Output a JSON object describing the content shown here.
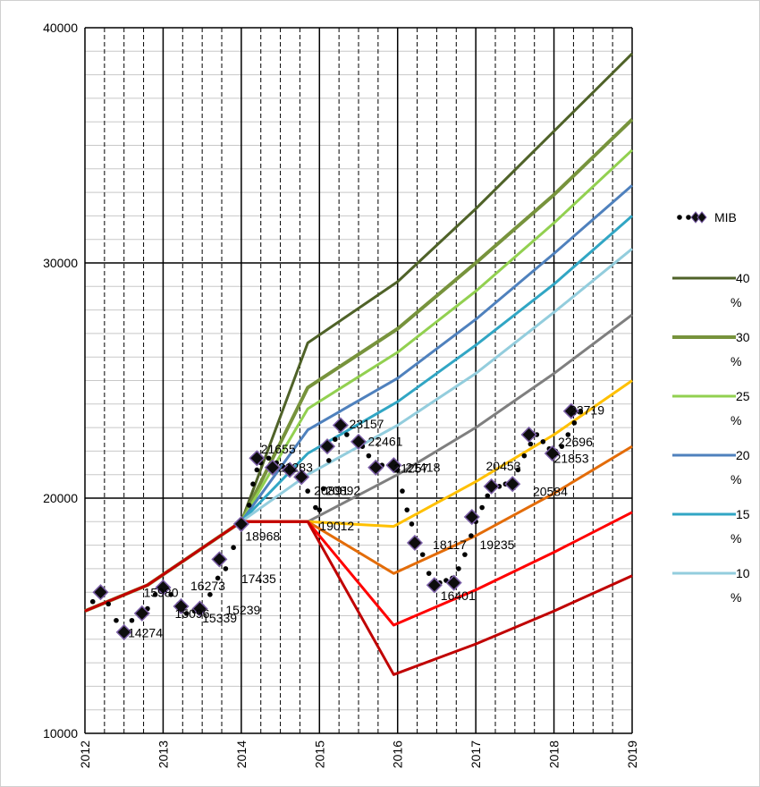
{
  "chart_data": {
    "type": "line",
    "xlim": [
      2012,
      2019
    ],
    "ylim": [
      10000,
      40000
    ],
    "y_ticks": [
      10000,
      20000,
      30000,
      40000
    ],
    "y_tick_labels": [
      "10000",
      "20000",
      "30000",
      "40000"
    ],
    "x_ticks": [
      2012,
      2013,
      2014,
      2015,
      2016,
      2017,
      2018,
      2019
    ],
    "x_tick_labels": [
      "2012",
      "2013",
      "2014",
      "2015",
      "2016",
      "2017",
      "2018",
      "2019"
    ],
    "grid": true,
    "legend_position": "right",
    "mib": {
      "name": "MIB",
      "color": "#000000",
      "marker_fill": "#0d0d0d",
      "marker_edge": "#7b5ea7",
      "dots": [
        [
          2012.1,
          15600
        ],
        [
          2012.2,
          16000
        ],
        [
          2012.3,
          15500
        ],
        [
          2012.4,
          14800
        ],
        [
          2012.5,
          14300
        ],
        [
          2012.6,
          14800
        ],
        [
          2012.7,
          15000
        ],
        [
          2012.8,
          15300
        ],
        [
          2012.9,
          15900
        ],
        [
          2013.0,
          16200
        ],
        [
          2013.1,
          15900
        ],
        [
          2013.2,
          15500
        ],
        [
          2013.3,
          15100
        ],
        [
          2013.4,
          15200
        ],
        [
          2013.5,
          15400
        ],
        [
          2013.6,
          15900
        ],
        [
          2013.7,
          16600
        ],
        [
          2013.8,
          17000
        ],
        [
          2013.9,
          17900
        ],
        [
          2014.0,
          18700
        ],
        [
          2014.1,
          19700
        ],
        [
          2014.15,
          20600
        ],
        [
          2014.2,
          21200
        ],
        [
          2014.25,
          21500
        ],
        [
          2014.35,
          21700
        ],
        [
          2014.45,
          21500
        ],
        [
          2014.55,
          21300
        ],
        [
          2014.65,
          21200
        ],
        [
          2014.75,
          20800
        ],
        [
          2014.85,
          20300
        ],
        [
          2014.95,
          19600
        ],
        [
          2015.0,
          19500
        ],
        [
          2015.05,
          20400
        ],
        [
          2015.12,
          21600
        ],
        [
          2015.2,
          22500
        ],
        [
          2015.28,
          23000
        ],
        [
          2015.35,
          22700
        ],
        [
          2015.45,
          22400
        ],
        [
          2015.55,
          22200
        ],
        [
          2015.63,
          21800
        ],
        [
          2015.72,
          21400
        ],
        [
          2015.8,
          21400
        ],
        [
          2015.9,
          21400
        ],
        [
          2016.0,
          21200
        ],
        [
          2016.06,
          20300
        ],
        [
          2016.12,
          19500
        ],
        [
          2016.18,
          18900
        ],
        [
          2016.25,
          18200
        ],
        [
          2016.32,
          17600
        ],
        [
          2016.4,
          16800
        ],
        [
          2016.47,
          16300
        ],
        [
          2016.54,
          16400
        ],
        [
          2016.62,
          16500
        ],
        [
          2016.7,
          16600
        ],
        [
          2016.78,
          17000
        ],
        [
          2016.86,
          17600
        ],
        [
          2016.94,
          18400
        ],
        [
          2017.0,
          19000
        ],
        [
          2017.08,
          19600
        ],
        [
          2017.15,
          20100
        ],
        [
          2017.22,
          20500
        ],
        [
          2017.3,
          20500
        ],
        [
          2017.38,
          20600
        ],
        [
          2017.46,
          20700
        ],
        [
          2017.54,
          21200
        ],
        [
          2017.62,
          21800
        ],
        [
          2017.7,
          22300
        ],
        [
          2017.78,
          22700
        ],
        [
          2017.86,
          22400
        ],
        [
          2017.94,
          22100
        ],
        [
          2018.02,
          22000
        ],
        [
          2018.1,
          22200
        ],
        [
          2018.18,
          22700
        ],
        [
          2018.26,
          23200
        ],
        [
          2018.34,
          23700
        ]
      ],
      "diamonds": [
        [
          2012.2,
          16000
        ],
        [
          2012.5,
          14300
        ],
        [
          2012.73,
          15100
        ],
        [
          2013.0,
          16200
        ],
        [
          2013.23,
          15400
        ],
        [
          2013.47,
          15300
        ],
        [
          2013.72,
          17400
        ],
        [
          2014.0,
          18900
        ],
        [
          2014.2,
          21700
        ],
        [
          2014.4,
          21300
        ],
        [
          2014.62,
          21200
        ],
        [
          2014.77,
          20900
        ],
        [
          2015.1,
          22200
        ],
        [
          2015.27,
          23100
        ],
        [
          2015.5,
          22400
        ],
        [
          2015.72,
          21300
        ],
        [
          2015.95,
          21400
        ],
        [
          2016.22,
          18100
        ],
        [
          2016.47,
          16300
        ],
        [
          2016.72,
          16400
        ],
        [
          2016.95,
          19200
        ],
        [
          2017.2,
          20500
        ],
        [
          2017.47,
          20600
        ],
        [
          2017.68,
          22700
        ],
        [
          2017.98,
          21900
        ],
        [
          2018.22,
          23700
        ]
      ]
    },
    "data_labels": [
      {
        "x": 2012.75,
        "y": 15980,
        "text": "15980"
      },
      {
        "x": 2012.55,
        "y": 14274,
        "text": "14274"
      },
      {
        "x": 2013.15,
        "y": 15096,
        "text": "15096"
      },
      {
        "x": 2013.35,
        "y": 16273,
        "text": "16273"
      },
      {
        "x": 2013.5,
        "y": 14900,
        "text": "15339"
      },
      {
        "x": 2013.8,
        "y": 15239,
        "text": "15239"
      },
      {
        "x": 2014.0,
        "y": 16580,
        "text": "17435"
      },
      {
        "x": 2014.05,
        "y": 18380,
        "text": "18968"
      },
      {
        "x": 2014.25,
        "y": 22100,
        "text": "21655"
      },
      {
        "x": 2014.47,
        "y": 21320,
        "text": "21283"
      },
      {
        "x": 2014.93,
        "y": 20320,
        "text": "20891"
      },
      {
        "x": 2015.08,
        "y": 20320,
        "text": "20892"
      },
      {
        "x": 2015.38,
        "y": 23150,
        "text": "23157"
      },
      {
        "x": 2015.62,
        "y": 22420,
        "text": "22461"
      },
      {
        "x": 2015.95,
        "y": 21280,
        "text": "21257"
      },
      {
        "x": 2016.1,
        "y": 21320,
        "text": "21418"
      },
      {
        "x": 2015.0,
        "y": 18820,
        "text": "19012"
      },
      {
        "x": 2016.45,
        "y": 18020,
        "text": "18117"
      },
      {
        "x": 2017.05,
        "y": 18020,
        "text": "19235"
      },
      {
        "x": 2016.55,
        "y": 15860,
        "text": "16401"
      },
      {
        "x": 2017.13,
        "y": 21360,
        "text": "20453"
      },
      {
        "x": 2017.73,
        "y": 20280,
        "text": "20584"
      },
      {
        "x": 2018.05,
        "y": 22400,
        "text": "22696"
      },
      {
        "x": 2018.0,
        "y": 21700,
        "text": "21853"
      },
      {
        "x": 2018.2,
        "y": 23740,
        "text": "23719"
      }
    ],
    "series": [
      {
        "name": "40 %",
        "color": "#4f6228",
        "width": 3,
        "x": [
          2012,
          2012.8,
          2014,
          2014.85,
          2016,
          2017,
          2018,
          2019
        ],
        "y": [
          15200,
          16300,
          19000,
          26600,
          29200,
          32300,
          35600,
          38900
        ]
      },
      {
        "name": "30 %",
        "color": "#77933c",
        "width": 4,
        "x": [
          2012,
          2012.8,
          2014,
          2014.85,
          2016,
          2017,
          2018,
          2019
        ],
        "y": [
          15200,
          16300,
          19000,
          24700,
          27200,
          30000,
          32900,
          36100
        ]
      },
      {
        "name": "25 %",
        "color": "#92d050",
        "width": 3,
        "x": [
          2012,
          2012.8,
          2014,
          2014.85,
          2016,
          2017,
          2018,
          2019
        ],
        "y": [
          15200,
          16300,
          19000,
          23800,
          26200,
          28800,
          31700,
          34800
        ]
      },
      {
        "name": "20 %",
        "color": "#4f81bd",
        "width": 3,
        "x": [
          2012,
          2012.8,
          2014,
          2014.85,
          2016,
          2017,
          2018,
          2019
        ],
        "y": [
          15200,
          16300,
          19000,
          22900,
          25100,
          27600,
          30400,
          33300
        ]
      },
      {
        "name": "15 %",
        "color": "#31a6c4",
        "width": 3,
        "x": [
          2012,
          2012.8,
          2014,
          2014.85,
          2016,
          2017,
          2018,
          2019
        ],
        "y": [
          15200,
          16300,
          19000,
          21900,
          24100,
          26500,
          29100,
          32000
        ]
      },
      {
        "name": "10 %",
        "color": "#93cddd",
        "width": 3,
        "x": [
          2012,
          2012.8,
          2014,
          2014.85,
          2016,
          2017,
          2018,
          2019
        ],
        "y": [
          15200,
          16300,
          19000,
          21000,
          23100,
          25300,
          27900,
          30600
        ]
      },
      {
        "name": "",
        "color": "#7f7f7f",
        "width": 3,
        "x": [
          2012,
          2012.8,
          2014,
          2014.85,
          2016,
          2017,
          2018,
          2019
        ],
        "y": [
          15200,
          16300,
          19000,
          19000,
          21000,
          23000,
          25300,
          27800
        ]
      },
      {
        "name": "",
        "color": "#ffc000",
        "width": 3,
        "x": [
          2012,
          2012.8,
          2014,
          2014.85,
          2015.95,
          2017,
          2018,
          2019
        ],
        "y": [
          15200,
          16300,
          19000,
          19000,
          18800,
          20700,
          22700,
          25000
        ]
      },
      {
        "name": "",
        "color": "#e36c09",
        "width": 3,
        "x": [
          2012,
          2012.8,
          2014,
          2014.85,
          2015.95,
          2017,
          2018,
          2019
        ],
        "y": [
          15200,
          16300,
          19000,
          19000,
          16800,
          18400,
          20200,
          22200
        ]
      },
      {
        "name": "",
        "color": "#ff0000",
        "width": 3,
        "x": [
          2012,
          2012.8,
          2014,
          2014.85,
          2015.95,
          2017,
          2018,
          2019
        ],
        "y": [
          15200,
          16300,
          19000,
          19000,
          14600,
          16100,
          17700,
          19400
        ]
      },
      {
        "name": "",
        "color": "#c00000",
        "width": 3,
        "x": [
          2012,
          2012.8,
          2014,
          2014.85,
          2015.95,
          2017,
          2018,
          2019
        ],
        "y": [
          15200,
          16300,
          19000,
          19000,
          12500,
          13800,
          15200,
          16700
        ]
      }
    ]
  }
}
